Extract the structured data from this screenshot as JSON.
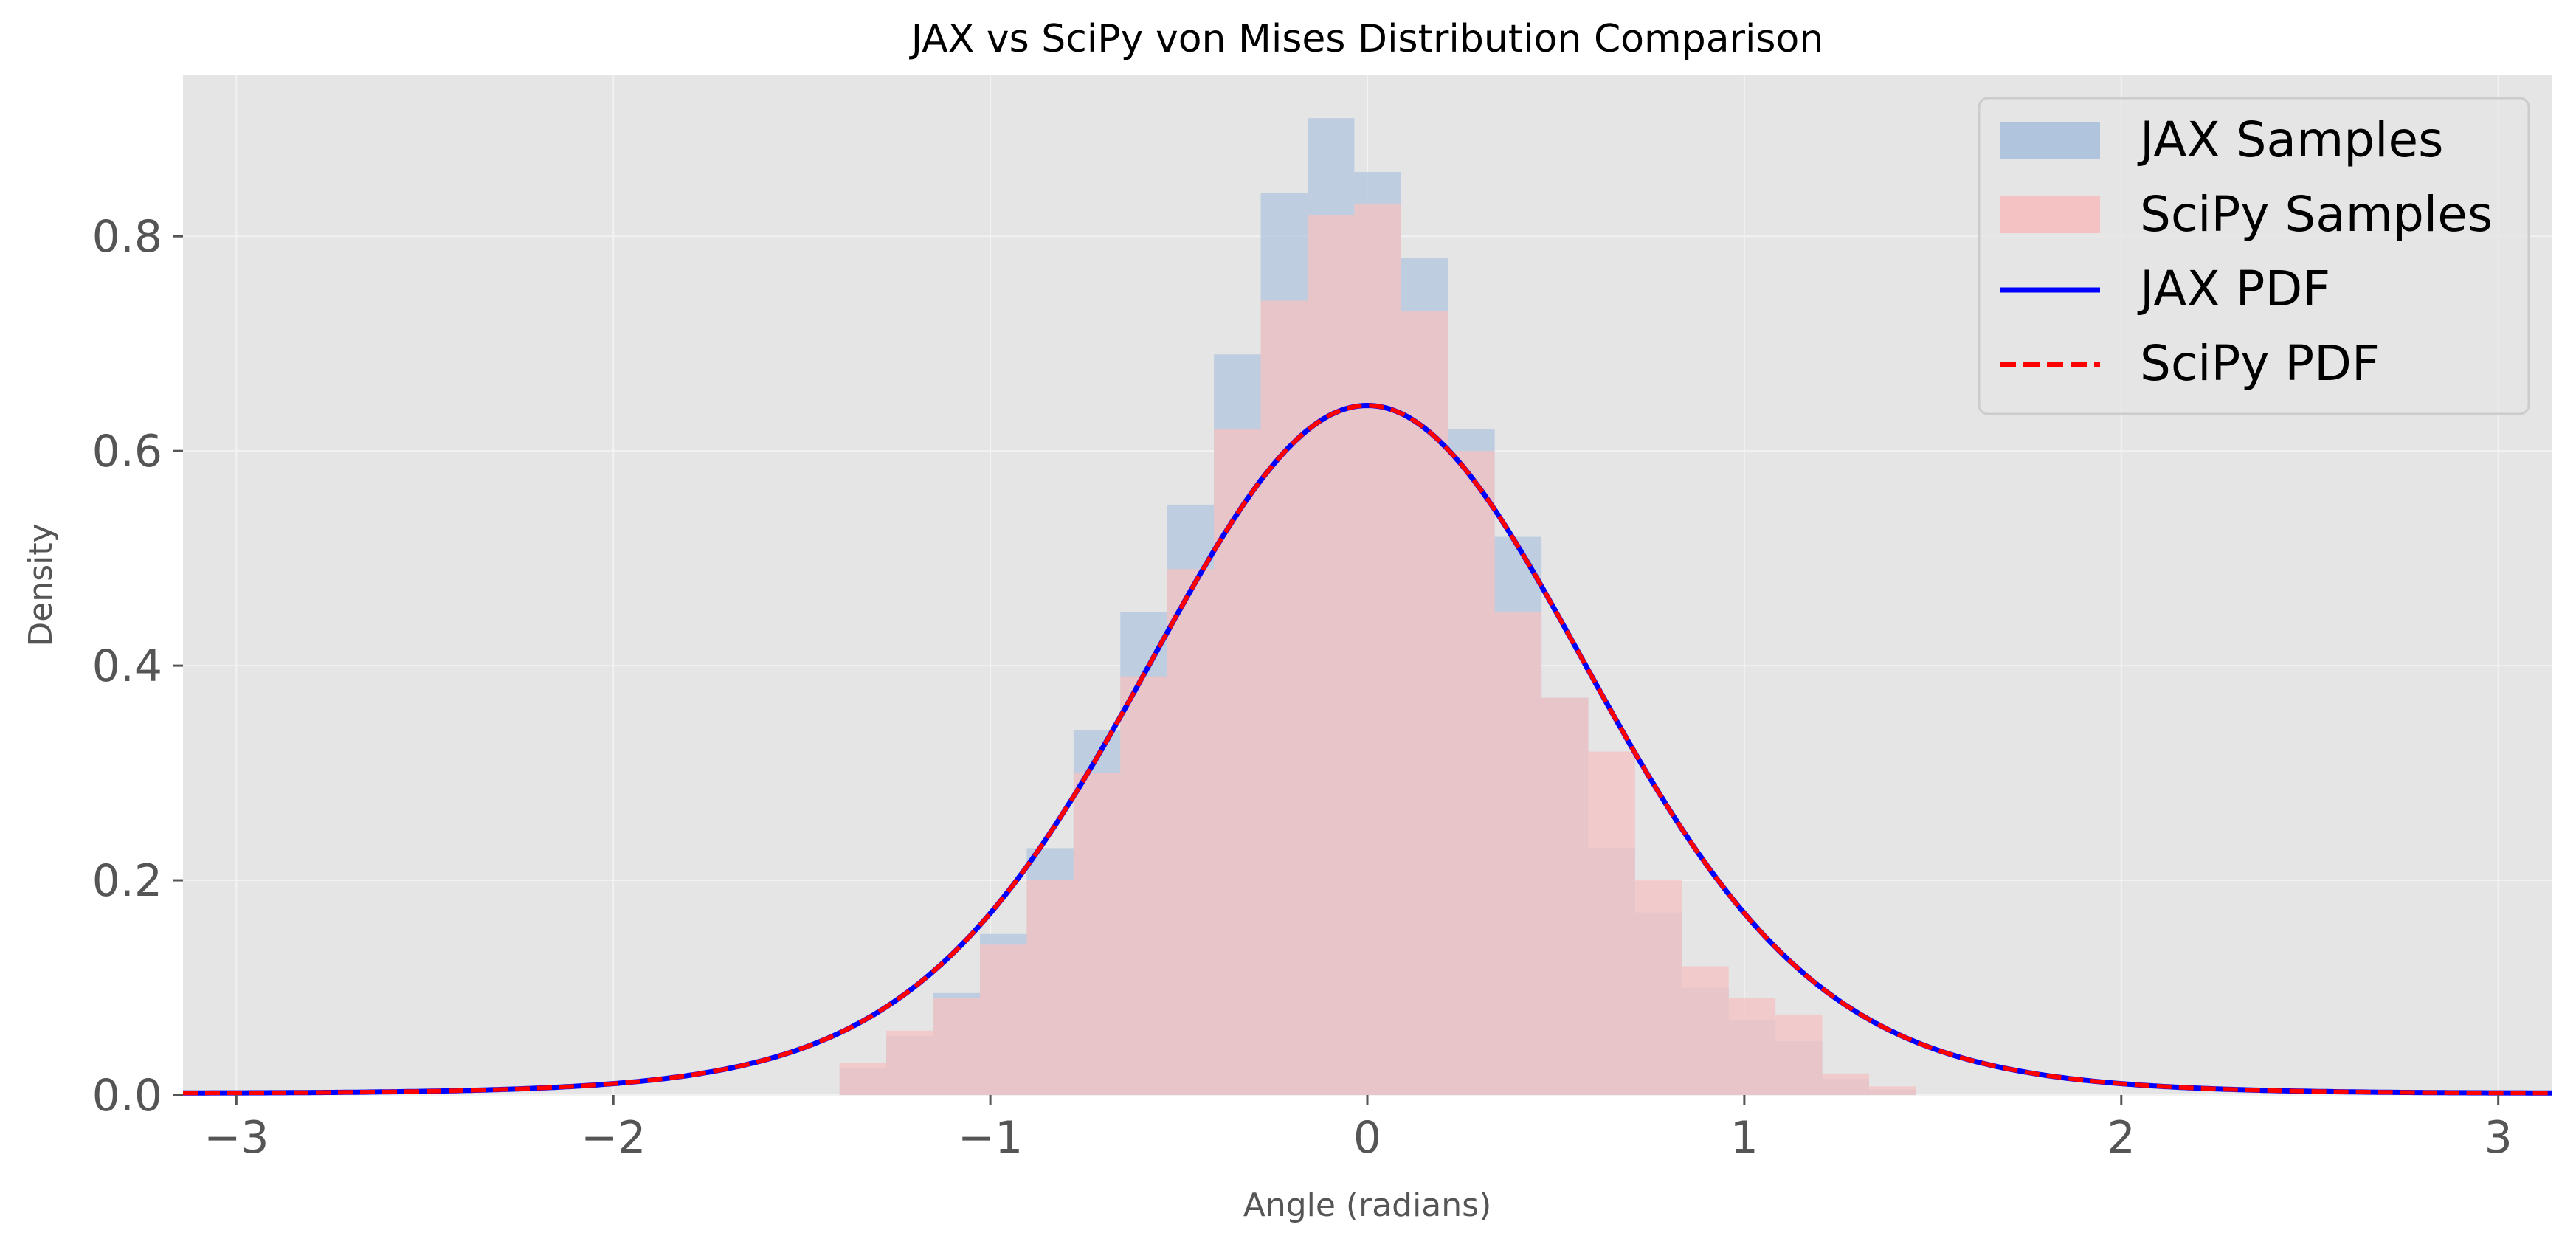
{
  "chart_data": {
    "type": "bar",
    "title": "JAX vs SciPy von Mises Distribution Comparison",
    "xlabel": "Angle (radians)",
    "ylabel": "Density",
    "xlim": [
      -3.14159,
      3.14159
    ],
    "ylim": [
      0,
      0.95
    ],
    "xticks": [
      {
        "value": -3,
        "label": "−3"
      },
      {
        "value": -2,
        "label": "−2"
      },
      {
        "value": -1,
        "label": "−1"
      },
      {
        "value": 0,
        "label": "0"
      },
      {
        "value": 1,
        "label": "1"
      },
      {
        "value": 2,
        "label": "2"
      },
      {
        "value": 3,
        "label": "3"
      }
    ],
    "yticks": [
      {
        "value": 0.0,
        "label": "0.0"
      },
      {
        "value": 0.2,
        "label": "0.2"
      },
      {
        "value": 0.4,
        "label": "0.4"
      },
      {
        "value": 0.6,
        "label": "0.6"
      },
      {
        "value": 0.8,
        "label": "0.8"
      }
    ],
    "grid": true,
    "legend_position": "top-right",
    "pdf": {
      "kappa": 2.9,
      "mu": 0.0
    },
    "histograms": [
      {
        "name": "JAX Samples",
        "color": "#b0c4de",
        "bin_edges": [
          -1.4,
          -1.2759,
          -1.1517,
          -1.0276,
          -0.9034,
          -0.7793,
          -0.6552,
          -0.531,
          -0.4069,
          -0.2828,
          -0.1586,
          -0.0345,
          0.0897,
          0.2138,
          0.3379,
          0.4621,
          0.5862,
          0.7103,
          0.8345,
          0.9586,
          1.0828,
          1.2069,
          1.331,
          1.4552
        ],
        "values": [
          0.025,
          0.055,
          0.095,
          0.15,
          0.23,
          0.34,
          0.45,
          0.55,
          0.69,
          0.84,
          0.91,
          0.86,
          0.78,
          0.62,
          0.52,
          0.37,
          0.23,
          0.17,
          0.1,
          0.07,
          0.05,
          0.015,
          0.005
        ]
      },
      {
        "name": "SciPy Samples",
        "color": "#f4c2c2",
        "bin_edges": [
          -1.4,
          -1.2759,
          -1.1517,
          -1.0276,
          -0.9034,
          -0.7793,
          -0.6552,
          -0.531,
          -0.4069,
          -0.2828,
          -0.1586,
          -0.0345,
          0.0897,
          0.2138,
          0.3379,
          0.4621,
          0.5862,
          0.7103,
          0.8345,
          0.9586,
          1.0828,
          1.2069,
          1.331,
          1.4552
        ],
        "values": [
          0.03,
          0.06,
          0.09,
          0.14,
          0.2,
          0.3,
          0.39,
          0.49,
          0.62,
          0.74,
          0.82,
          0.83,
          0.73,
          0.6,
          0.45,
          0.37,
          0.32,
          0.2,
          0.12,
          0.09,
          0.075,
          0.02,
          0.008
        ]
      }
    ],
    "series": [
      {
        "name": "JAX PDF",
        "color": "#0000ff",
        "style": "solid"
      },
      {
        "name": "SciPy PDF",
        "color": "#ff0000",
        "style": "dashed"
      }
    ],
    "legend": [
      {
        "label": "JAX Samples",
        "kind": "patch",
        "color": "#b0c4de"
      },
      {
        "label": "SciPy Samples",
        "kind": "patch",
        "color": "#f4c2c2"
      },
      {
        "label": "JAX PDF",
        "kind": "line",
        "color": "#0000ff"
      },
      {
        "label": "SciPy PDF",
        "kind": "dashed",
        "color": "#ff0000"
      }
    ],
    "colors": {
      "plot_background": "#e5e5e5",
      "grid": "#f2f2f2"
    }
  }
}
